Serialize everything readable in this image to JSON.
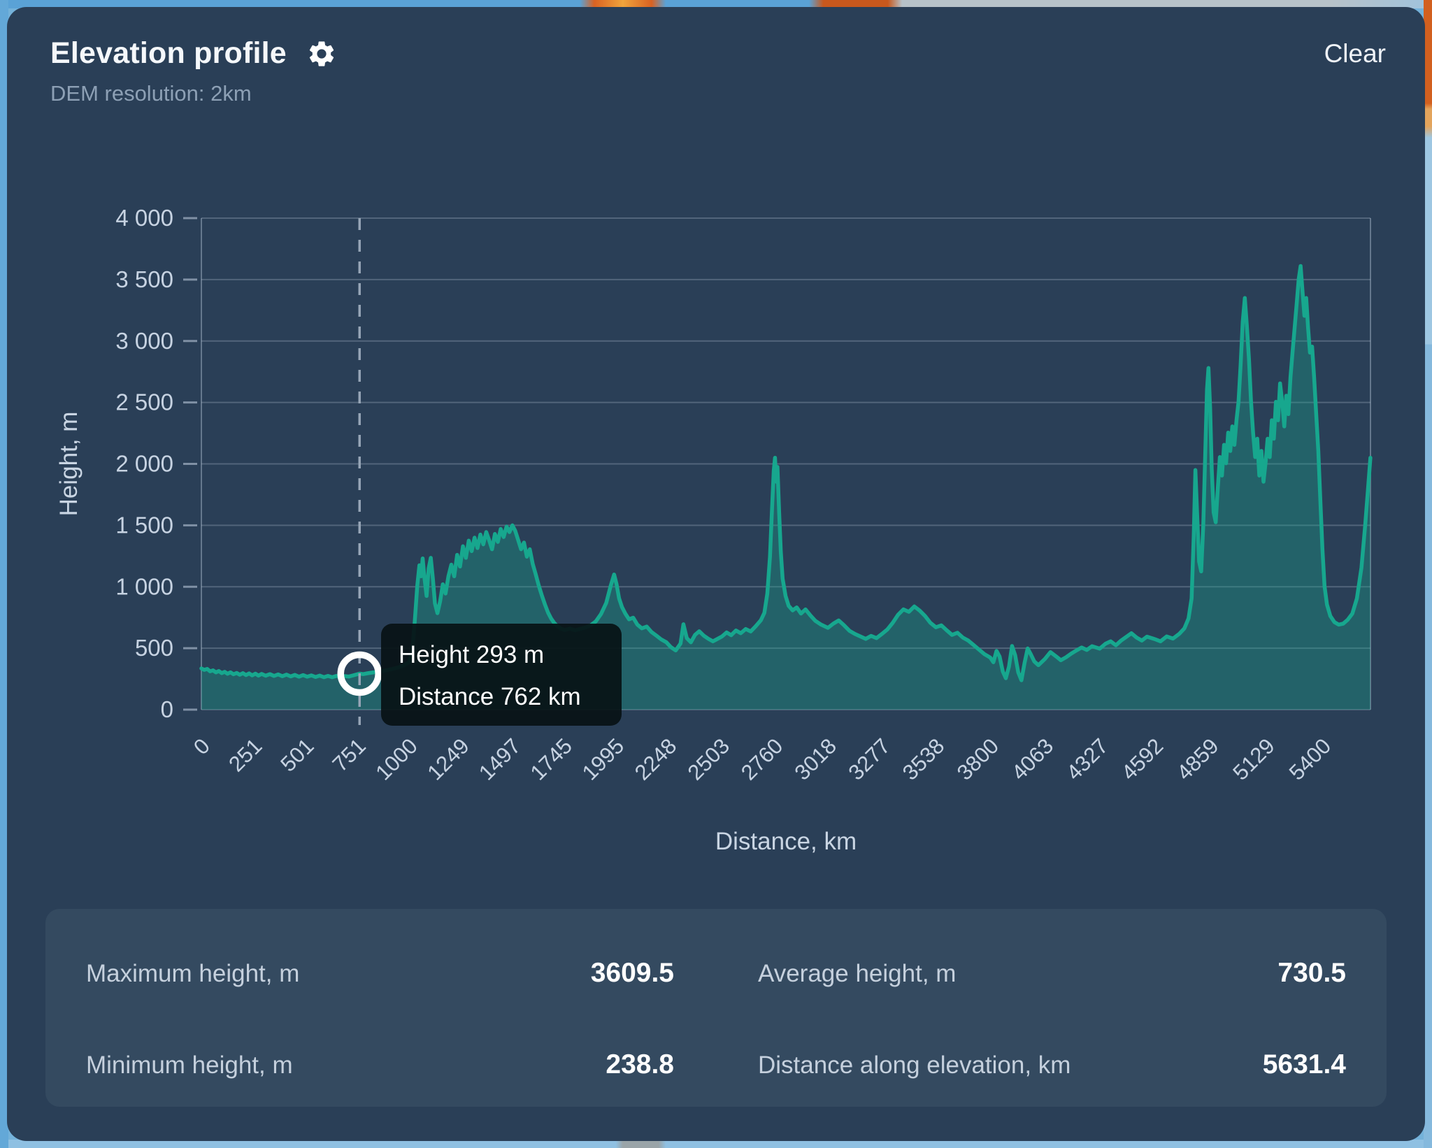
{
  "header": {
    "title": "Elevation profile",
    "clear_label": "Clear",
    "subtitle": "DEM resolution: 2km"
  },
  "stats": [
    {
      "label": "Maximum height, m",
      "value": "3609.5"
    },
    {
      "label": "Average height, m",
      "value": "730.5"
    },
    {
      "label": "Minimum height, m",
      "value": "238.8"
    },
    {
      "label": "Distance along elevation, km",
      "value": "5631.4"
    }
  ],
  "colors": {
    "panel_bg": "#2a3f57",
    "stats_bg": "#344a60",
    "line": "#17a78e",
    "area_fill": "rgba(23,167,142,0.34)",
    "tooltip_bg": "rgba(8,18,22,0.93)"
  },
  "chart_data": {
    "type": "area",
    "title": "Elevation profile",
    "xlabel": "Distance, km",
    "ylabel": "Height, m",
    "xlim": [
      0,
      5631.4
    ],
    "ylim": [
      0,
      4000
    ],
    "grid": true,
    "y_tick_values": [
      0,
      500,
      1000,
      1500,
      2000,
      2500,
      3000,
      3500,
      4000
    ],
    "y_tick_labels": [
      "0",
      "500",
      "1 000",
      "1 500",
      "2 000",
      "2 500",
      "3 000",
      "3 500",
      "4 000"
    ],
    "x_tick_values": [
      0,
      251,
      501,
      751,
      1000,
      1249,
      1497,
      1745,
      1995,
      2248,
      2503,
      2760,
      3018,
      3277,
      3538,
      3800,
      4063,
      4327,
      4592,
      4859,
      5129,
      5400
    ],
    "x_tick_labels": [
      "0",
      "251",
      "501",
      "751",
      "1000",
      "1249",
      "1497",
      "1745",
      "1995",
      "2248",
      "2503",
      "2760",
      "3018",
      "3277",
      "3538",
      "3800",
      "4063",
      "4327",
      "4592",
      "4859",
      "5129",
      "5400"
    ],
    "cursor": {
      "distance_km": 762,
      "height_m": 293,
      "height_label": "Height 293 m",
      "distance_label": "Distance 762 km"
    },
    "profile": [
      [
        0,
        335
      ],
      [
        14,
        324
      ],
      [
        28,
        331
      ],
      [
        42,
        312
      ],
      [
        56,
        320
      ],
      [
        70,
        303
      ],
      [
        84,
        314
      ],
      [
        98,
        297
      ],
      [
        112,
        308
      ],
      [
        126,
        292
      ],
      [
        140,
        304
      ],
      [
        155,
        288
      ],
      [
        170,
        299
      ],
      [
        185,
        284
      ],
      [
        200,
        297
      ],
      [
        215,
        281
      ],
      [
        230,
        295
      ],
      [
        245,
        279
      ],
      [
        260,
        293
      ],
      [
        275,
        277
      ],
      [
        290,
        291
      ],
      [
        310,
        276
      ],
      [
        330,
        289
      ],
      [
        350,
        274
      ],
      [
        370,
        287
      ],
      [
        390,
        272
      ],
      [
        410,
        285
      ],
      [
        430,
        270
      ],
      [
        450,
        283
      ],
      [
        470,
        268
      ],
      [
        490,
        281
      ],
      [
        510,
        268
      ],
      [
        530,
        279
      ],
      [
        550,
        266
      ],
      [
        570,
        277
      ],
      [
        590,
        264
      ],
      [
        610,
        275
      ],
      [
        630,
        264
      ],
      [
        650,
        274
      ],
      [
        670,
        266
      ],
      [
        690,
        273
      ],
      [
        710,
        269
      ],
      [
        730,
        278
      ],
      [
        745,
        285
      ],
      [
        762,
        293
      ],
      [
        780,
        289
      ],
      [
        800,
        296
      ],
      [
        825,
        302
      ],
      [
        850,
        308
      ],
      [
        875,
        315
      ],
      [
        900,
        324
      ],
      [
        925,
        333
      ],
      [
        950,
        344
      ],
      [
        975,
        360
      ],
      [
        1000,
        385
      ],
      [
        1015,
        470
      ],
      [
        1028,
        720
      ],
      [
        1040,
        1010
      ],
      [
        1050,
        1175
      ],
      [
        1058,
        1085
      ],
      [
        1066,
        1230
      ],
      [
        1075,
        1065
      ],
      [
        1085,
        925
      ],
      [
        1095,
        1150
      ],
      [
        1105,
        1235
      ],
      [
        1115,
        1065
      ],
      [
        1125,
        865
      ],
      [
        1137,
        785
      ],
      [
        1150,
        880
      ],
      [
        1163,
        1020
      ],
      [
        1176,
        945
      ],
      [
        1190,
        1085
      ],
      [
        1204,
        1180
      ],
      [
        1218,
        1085
      ],
      [
        1232,
        1260
      ],
      [
        1246,
        1165
      ],
      [
        1260,
        1330
      ],
      [
        1274,
        1235
      ],
      [
        1288,
        1375
      ],
      [
        1302,
        1290
      ],
      [
        1316,
        1400
      ],
      [
        1330,
        1315
      ],
      [
        1344,
        1425
      ],
      [
        1358,
        1345
      ],
      [
        1372,
        1445
      ],
      [
        1386,
        1380
      ],
      [
        1400,
        1305
      ],
      [
        1414,
        1430
      ],
      [
        1428,
        1365
      ],
      [
        1442,
        1470
      ],
      [
        1456,
        1405
      ],
      [
        1470,
        1490
      ],
      [
        1484,
        1445
      ],
      [
        1498,
        1500
      ],
      [
        1512,
        1455
      ],
      [
        1526,
        1380
      ],
      [
        1540,
        1305
      ],
      [
        1554,
        1360
      ],
      [
        1568,
        1245
      ],
      [
        1582,
        1305
      ],
      [
        1596,
        1185
      ],
      [
        1610,
        1105
      ],
      [
        1625,
        1010
      ],
      [
        1640,
        930
      ],
      [
        1655,
        855
      ],
      [
        1670,
        790
      ],
      [
        1685,
        740
      ],
      [
        1700,
        705
      ],
      [
        1715,
        678
      ],
      [
        1732,
        660
      ],
      [
        1750,
        648
      ],
      [
        1775,
        660
      ],
      [
        1800,
        646
      ],
      [
        1825,
        658
      ],
      [
        1850,
        668
      ],
      [
        1875,
        686
      ],
      [
        1900,
        718
      ],
      [
        1925,
        778
      ],
      [
        1950,
        868
      ],
      [
        1972,
        1010
      ],
      [
        1988,
        1100
      ],
      [
        2000,
        1020
      ],
      [
        2012,
        905
      ],
      [
        2026,
        835
      ],
      [
        2042,
        782
      ],
      [
        2060,
        735
      ],
      [
        2080,
        748
      ],
      [
        2100,
        692
      ],
      [
        2122,
        662
      ],
      [
        2145,
        676
      ],
      [
        2168,
        632
      ],
      [
        2192,
        602
      ],
      [
        2215,
        572
      ],
      [
        2240,
        548
      ],
      [
        2262,
        508
      ],
      [
        2285,
        482
      ],
      [
        2308,
        538
      ],
      [
        2322,
        695
      ],
      [
        2338,
        582
      ],
      [
        2358,
        548
      ],
      [
        2378,
        608
      ],
      [
        2398,
        638
      ],
      [
        2420,
        602
      ],
      [
        2442,
        577
      ],
      [
        2464,
        556
      ],
      [
        2486,
        576
      ],
      [
        2508,
        596
      ],
      [
        2530,
        628
      ],
      [
        2552,
        606
      ],
      [
        2575,
        644
      ],
      [
        2598,
        622
      ],
      [
        2622,
        656
      ],
      [
        2646,
        636
      ],
      [
        2670,
        678
      ],
      [
        2695,
        728
      ],
      [
        2712,
        788
      ],
      [
        2726,
        945
      ],
      [
        2739,
        1245
      ],
      [
        2749,
        1645
      ],
      [
        2757,
        1945
      ],
      [
        2763,
        2050
      ],
      [
        2769,
        1855
      ],
      [
        2775,
        1975
      ],
      [
        2783,
        1605
      ],
      [
        2791,
        1285
      ],
      [
        2800,
        1065
      ],
      [
        2814,
        925
      ],
      [
        2829,
        845
      ],
      [
        2848,
        808
      ],
      [
        2868,
        832
      ],
      [
        2888,
        782
      ],
      [
        2910,
        816
      ],
      [
        2934,
        766
      ],
      [
        2958,
        722
      ],
      [
        2985,
        692
      ],
      [
        3018,
        666
      ],
      [
        3044,
        700
      ],
      [
        3070,
        726
      ],
      [
        3096,
        686
      ],
      [
        3122,
        642
      ],
      [
        3148,
        616
      ],
      [
        3174,
        596
      ],
      [
        3200,
        576
      ],
      [
        3226,
        600
      ],
      [
        3252,
        582
      ],
      [
        3278,
        616
      ],
      [
        3304,
        652
      ],
      [
        3330,
        706
      ],
      [
        3356,
        772
      ],
      [
        3382,
        816
      ],
      [
        3408,
        796
      ],
      [
        3434,
        840
      ],
      [
        3460,
        806
      ],
      [
        3486,
        762
      ],
      [
        3512,
        706
      ],
      [
        3538,
        670
      ],
      [
        3564,
        686
      ],
      [
        3590,
        646
      ],
      [
        3616,
        608
      ],
      [
        3642,
        626
      ],
      [
        3668,
        586
      ],
      [
        3694,
        562
      ],
      [
        3720,
        526
      ],
      [
        3746,
        488
      ],
      [
        3772,
        452
      ],
      [
        3800,
        424
      ],
      [
        3815,
        386
      ],
      [
        3830,
        478
      ],
      [
        3845,
        432
      ],
      [
        3860,
        312
      ],
      [
        3875,
        256
      ],
      [
        3890,
        350
      ],
      [
        3905,
        518
      ],
      [
        3920,
        442
      ],
      [
        3935,
        302
      ],
      [
        3950,
        239
      ],
      [
        3965,
        378
      ],
      [
        3980,
        498
      ],
      [
        3995,
        452
      ],
      [
        4012,
        392
      ],
      [
        4032,
        362
      ],
      [
        4063,
        412
      ],
      [
        4090,
        468
      ],
      [
        4115,
        436
      ],
      [
        4140,
        402
      ],
      [
        4165,
        426
      ],
      [
        4190,
        456
      ],
      [
        4215,
        482
      ],
      [
        4240,
        506
      ],
      [
        4265,
        486
      ],
      [
        4290,
        516
      ],
      [
        4327,
        496
      ],
      [
        4355,
        536
      ],
      [
        4380,
        556
      ],
      [
        4405,
        524
      ],
      [
        4430,
        562
      ],
      [
        4455,
        592
      ],
      [
        4480,
        622
      ],
      [
        4505,
        586
      ],
      [
        4530,
        562
      ],
      [
        4555,
        594
      ],
      [
        4592,
        574
      ],
      [
        4620,
        556
      ],
      [
        4650,
        596
      ],
      [
        4680,
        578
      ],
      [
        4710,
        616
      ],
      [
        4735,
        662
      ],
      [
        4755,
        742
      ],
      [
        4770,
        905
      ],
      [
        4780,
        1405
      ],
      [
        4788,
        1950
      ],
      [
        4796,
        1605
      ],
      [
        4806,
        1205
      ],
      [
        4816,
        1125
      ],
      [
        4826,
        1505
      ],
      [
        4836,
        2105
      ],
      [
        4844,
        2605
      ],
      [
        4851,
        2780
      ],
      [
        4859,
        2455
      ],
      [
        4867,
        1955
      ],
      [
        4876,
        1605
      ],
      [
        4886,
        1525
      ],
      [
        4896,
        1805
      ],
      [
        4906,
        2055
      ],
      [
        4916,
        1905
      ],
      [
        4926,
        2155
      ],
      [
        4936,
        2005
      ],
      [
        4946,
        2255
      ],
      [
        4956,
        2105
      ],
      [
        4966,
        2305
      ],
      [
        4976,
        2155
      ],
      [
        4986,
        2355
      ],
      [
        4996,
        2505
      ],
      [
        5006,
        2805
      ],
      [
        5016,
        3155
      ],
      [
        5026,
        3350
      ],
      [
        5036,
        3125
      ],
      [
        5046,
        2855
      ],
      [
        5056,
        2505
      ],
      [
        5066,
        2255
      ],
      [
        5076,
        2055
      ],
      [
        5086,
        2205
      ],
      [
        5096,
        1905
      ],
      [
        5106,
        2105
      ],
      [
        5116,
        1855
      ],
      [
        5126,
        2005
      ],
      [
        5136,
        2205
      ],
      [
        5146,
        2055
      ],
      [
        5156,
        2355
      ],
      [
        5166,
        2205
      ],
      [
        5176,
        2505
      ],
      [
        5186,
        2355
      ],
      [
        5196,
        2655
      ],
      [
        5206,
        2505
      ],
      [
        5216,
        2305
      ],
      [
        5226,
        2555
      ],
      [
        5236,
        2405
      ],
      [
        5246,
        2705
      ],
      [
        5256,
        2905
      ],
      [
        5266,
        3105
      ],
      [
        5276,
        3305
      ],
      [
        5286,
        3505
      ],
      [
        5295,
        3610
      ],
      [
        5304,
        3405
      ],
      [
        5313,
        3205
      ],
      [
        5322,
        3350
      ],
      [
        5331,
        3105
      ],
      [
        5340,
        2905
      ],
      [
        5350,
        2955
      ],
      [
        5360,
        2705
      ],
      [
        5370,
        2405
      ],
      [
        5380,
        2105
      ],
      [
        5390,
        1705
      ],
      [
        5400,
        1305
      ],
      [
        5410,
        1005
      ],
      [
        5422,
        855
      ],
      [
        5438,
        762
      ],
      [
        5458,
        712
      ],
      [
        5478,
        692
      ],
      [
        5500,
        700
      ],
      [
        5522,
        732
      ],
      [
        5544,
        782
      ],
      [
        5566,
        905
      ],
      [
        5588,
        1155
      ],
      [
        5606,
        1505
      ],
      [
        5620,
        1805
      ],
      [
        5631,
        2050
      ]
    ]
  }
}
